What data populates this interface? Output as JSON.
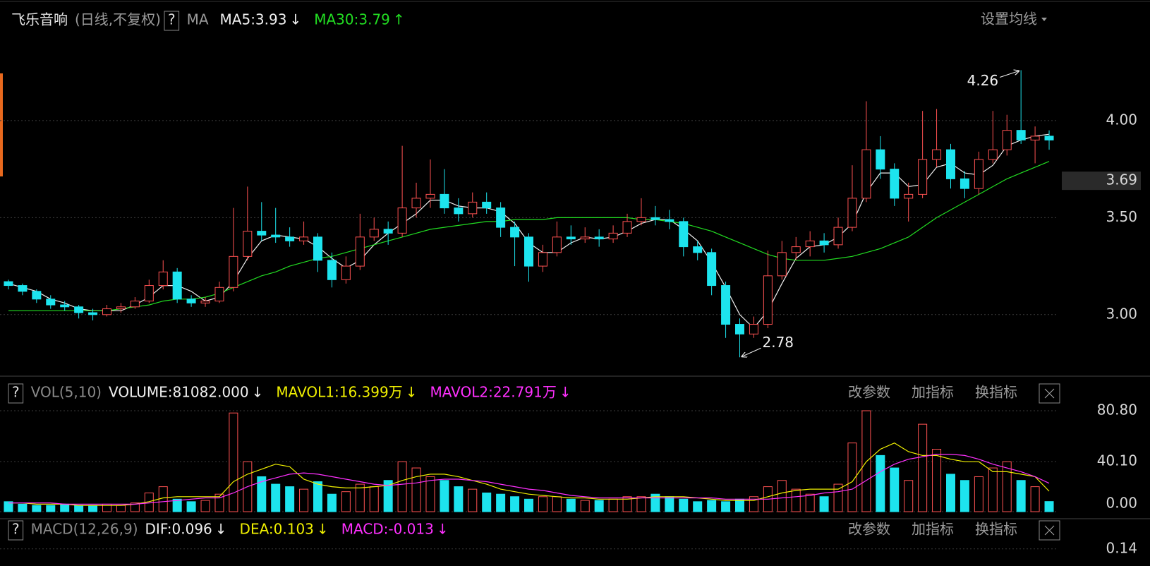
{
  "chart_data": [
    {
      "type": "candlestick",
      "title": "飞乐音响",
      "subtitle": "(日线,不复权)",
      "help": "?",
      "indicator": "MA",
      "settings": "设置均线",
      "up_color": "#ff5252",
      "down_color": "#1de4ee",
      "grid": true,
      "ylim": [
        2.69,
        4.44
      ],
      "yticks": [
        {
          "value": 3,
          "label": "3.00"
        },
        {
          "value": 3.5,
          "label": "3.50"
        },
        {
          "value": 4,
          "label": "4.00"
        }
      ],
      "current_price": 3.69,
      "extremes": [
        4.26,
        2.78
      ],
      "ohlc": [
        [
          3.17,
          3.18,
          3.13,
          3.15
        ],
        [
          3.15,
          3.16,
          3.1,
          3.12
        ],
        [
          3.12,
          3.13,
          3.06,
          3.08
        ],
        [
          3.08,
          3.1,
          3.03,
          3.05
        ],
        [
          3.05,
          3.07,
          3.02,
          3.04
        ],
        [
          3.04,
          3.05,
          2.98,
          3.01
        ],
        [
          3.01,
          3.03,
          2.97,
          3.0
        ],
        [
          3.0,
          3.05,
          2.99,
          3.03
        ],
        [
          3.03,
          3.06,
          3.01,
          3.04
        ],
        [
          3.04,
          3.09,
          3.03,
          3.07
        ],
        [
          3.07,
          3.18,
          3.06,
          3.15
        ],
        [
          3.15,
          3.28,
          3.13,
          3.22
        ],
        [
          3.22,
          3.24,
          3.06,
          3.08
        ],
        [
          3.08,
          3.1,
          3.04,
          3.06
        ],
        [
          3.06,
          3.09,
          3.04,
          3.07
        ],
        [
          3.07,
          3.17,
          3.06,
          3.14
        ],
        [
          3.14,
          3.55,
          3.12,
          3.3
        ],
        [
          3.3,
          3.66,
          3.28,
          3.43
        ],
        [
          3.43,
          3.58,
          3.38,
          3.41
        ],
        [
          3.41,
          3.55,
          3.37,
          3.4
        ],
        [
          3.4,
          3.45,
          3.35,
          3.38
        ],
        [
          3.38,
          3.48,
          3.36,
          3.4
        ],
        [
          3.4,
          3.42,
          3.22,
          3.28
        ],
        [
          3.28,
          3.32,
          3.14,
          3.18
        ],
        [
          3.18,
          3.3,
          3.16,
          3.25
        ],
        [
          3.25,
          3.52,
          3.23,
          3.4
        ],
        [
          3.4,
          3.5,
          3.38,
          3.44
        ],
        [
          3.44,
          3.48,
          3.36,
          3.42
        ],
        [
          3.42,
          3.87,
          3.4,
          3.55
        ],
        [
          3.55,
          3.68,
          3.5,
          3.6
        ],
        [
          3.6,
          3.8,
          3.55,
          3.62
        ],
        [
          3.62,
          3.75,
          3.52,
          3.55
        ],
        [
          3.55,
          3.6,
          3.48,
          3.52
        ],
        [
          3.52,
          3.63,
          3.5,
          3.58
        ],
        [
          3.58,
          3.63,
          3.52,
          3.55
        ],
        [
          3.55,
          3.58,
          3.4,
          3.45
        ],
        [
          3.45,
          3.48,
          3.25,
          3.4
        ],
        [
          3.4,
          3.42,
          3.17,
          3.25
        ],
        [
          3.25,
          3.36,
          3.22,
          3.32
        ],
        [
          3.32,
          3.48,
          3.3,
          3.4
        ],
        [
          3.4,
          3.46,
          3.36,
          3.39
        ],
        [
          3.39,
          3.45,
          3.37,
          3.4
        ],
        [
          3.4,
          3.44,
          3.35,
          3.39
        ],
        [
          3.39,
          3.46,
          3.37,
          3.42
        ],
        [
          3.42,
          3.52,
          3.4,
          3.48
        ],
        [
          3.48,
          3.6,
          3.46,
          3.5
        ],
        [
          3.5,
          3.56,
          3.46,
          3.49
        ],
        [
          3.49,
          3.54,
          3.44,
          3.48
        ],
        [
          3.48,
          3.5,
          3.3,
          3.35
        ],
        [
          3.35,
          3.38,
          3.28,
          3.32
        ],
        [
          3.32,
          3.34,
          3.1,
          3.15
        ],
        [
          3.15,
          3.17,
          2.88,
          2.95
        ],
        [
          2.95,
          2.98,
          2.78,
          2.9
        ],
        [
          2.9,
          2.99,
          2.88,
          2.95
        ],
        [
          2.95,
          3.33,
          2.93,
          3.2
        ],
        [
          3.2,
          3.38,
          3.18,
          3.32
        ],
        [
          3.32,
          3.4,
          3.28,
          3.35
        ],
        [
          3.35,
          3.43,
          3.3,
          3.38
        ],
        [
          3.38,
          3.42,
          3.32,
          3.36
        ],
        [
          3.36,
          3.5,
          3.34,
          3.45
        ],
        [
          3.45,
          3.77,
          3.43,
          3.6
        ],
        [
          3.6,
          4.1,
          3.58,
          3.85
        ],
        [
          3.85,
          3.92,
          3.7,
          3.75
        ],
        [
          3.75,
          3.78,
          3.56,
          3.6
        ],
        [
          3.6,
          3.68,
          3.48,
          3.62
        ],
        [
          3.62,
          4.05,
          3.6,
          3.8
        ],
        [
          3.8,
          4.06,
          3.76,
          3.85
        ],
        [
          3.85,
          3.88,
          3.65,
          3.7
        ],
        [
          3.7,
          3.74,
          3.6,
          3.65
        ],
        [
          3.65,
          3.84,
          3.62,
          3.8
        ],
        [
          3.8,
          4.05,
          3.78,
          3.85
        ],
        [
          3.85,
          4.03,
          3.82,
          3.95
        ],
        [
          3.95,
          4.26,
          3.88,
          3.9
        ],
        [
          3.9,
          3.97,
          3.78,
          3.92
        ],
        [
          3.92,
          3.95,
          3.85,
          3.9
        ]
      ],
      "series": [
        {
          "name": "MA5:3.93",
          "trend": "↓",
          "color": "#f0f0f0",
          "values": [
            3.16,
            3.14,
            3.12,
            3.08,
            3.06,
            3.03,
            3.02,
            3.02,
            3.02,
            3.05,
            3.09,
            3.15,
            3.15,
            3.12,
            3.07,
            3.09,
            3.17,
            3.29,
            3.38,
            3.41,
            3.4,
            3.39,
            3.35,
            3.29,
            3.24,
            3.28,
            3.36,
            3.42,
            3.47,
            3.52,
            3.59,
            3.59,
            3.56,
            3.55,
            3.55,
            3.53,
            3.47,
            3.37,
            3.32,
            3.32,
            3.37,
            3.4,
            3.39,
            3.4,
            3.43,
            3.47,
            3.49,
            3.49,
            3.44,
            3.38,
            3.27,
            3.14,
            3.0,
            2.93,
            3.02,
            3.16,
            3.29,
            3.35,
            3.36,
            3.4,
            3.47,
            3.63,
            3.73,
            3.73,
            3.66,
            3.67,
            3.76,
            3.78,
            3.73,
            3.72,
            3.77,
            3.87,
            3.9,
            3.92,
            3.93
          ]
        },
        {
          "name": "MA30:3.79",
          "trend": "↑",
          "color": "#22dd22",
          "values": [
            3.02,
            3.02,
            3.02,
            3.02,
            3.02,
            3.02,
            3.02,
            3.02,
            3.03,
            3.04,
            3.05,
            3.07,
            3.08,
            3.08,
            3.09,
            3.11,
            3.14,
            3.17,
            3.2,
            3.22,
            3.25,
            3.27,
            3.29,
            3.3,
            3.32,
            3.34,
            3.36,
            3.38,
            3.4,
            3.42,
            3.44,
            3.45,
            3.46,
            3.47,
            3.48,
            3.48,
            3.49,
            3.49,
            3.49,
            3.5,
            3.5,
            3.5,
            3.5,
            3.5,
            3.5,
            3.49,
            3.49,
            3.48,
            3.47,
            3.45,
            3.43,
            3.4,
            3.37,
            3.34,
            3.31,
            3.29,
            3.28,
            3.28,
            3.28,
            3.29,
            3.3,
            3.32,
            3.34,
            3.37,
            3.4,
            3.45,
            3.5,
            3.54,
            3.58,
            3.62,
            3.66,
            3.7,
            3.73,
            3.76,
            3.79
          ]
        }
      ]
    },
    {
      "type": "bar",
      "title": "VOL(5,10)",
      "help": "?",
      "volume_label": "VOLUME:81082.000",
      "volume_trend": "↓",
      "toolbar": [
        "改参数",
        "加指标",
        "换指标"
      ],
      "grid": true,
      "ylim": [
        0,
        80.8
      ],
      "yticks": [
        {
          "value": 0,
          "label": "0.00"
        },
        {
          "value": 40.1,
          "label": "40.10"
        },
        {
          "value": 80.8,
          "label": "80.80"
        }
      ],
      "values": [
        8,
        6,
        5,
        5,
        6,
        5,
        5,
        6,
        5,
        7,
        15,
        20,
        10,
        8,
        9,
        14,
        79,
        40,
        28,
        22,
        20,
        18,
        24,
        14,
        16,
        22,
        20,
        25,
        40,
        35,
        28,
        25,
        20,
        18,
        15,
        14,
        12,
        10,
        12,
        12,
        10,
        9,
        9,
        10,
        12,
        12,
        14,
        12,
        10,
        8,
        9,
        8,
        10,
        12,
        20,
        25,
        18,
        14,
        12,
        22,
        55,
        80.8,
        45,
        35,
        25,
        70,
        50,
        30,
        25,
        28,
        35,
        40,
        25,
        20,
        8.1
      ],
      "series": [
        {
          "name": "MAVOL1:16.399万",
          "trend": "↓",
          "color": "#f0f000",
          "values": [
            7,
            7,
            6,
            6,
            6,
            5,
            5,
            5,
            5,
            6,
            8,
            11,
            12,
            12,
            12,
            12,
            24,
            30,
            34,
            38,
            36,
            26,
            22,
            20,
            19,
            19,
            20,
            21,
            25,
            28,
            30,
            30,
            28,
            25,
            22,
            18,
            16,
            14,
            13,
            12,
            11,
            11,
            10,
            10,
            10,
            11,
            12,
            12,
            12,
            11,
            10,
            9,
            9,
            9,
            12,
            15,
            17,
            18,
            18,
            18,
            24,
            40,
            50,
            55,
            48,
            45,
            45,
            42,
            40,
            40,
            32,
            32,
            30,
            28,
            16.399
          ]
        },
        {
          "name": "MAVOL2:22.791万",
          "trend": "↓",
          "color": "#ff30ff",
          "values": [
            7,
            7,
            7,
            7,
            6,
            6,
            6,
            6,
            6,
            6,
            7,
            8,
            9,
            10,
            11,
            11,
            15,
            20,
            24,
            27,
            30,
            31,
            30,
            28,
            26,
            24,
            22,
            21,
            22,
            23,
            25,
            26,
            26,
            25,
            24,
            22,
            20,
            18,
            17,
            15,
            13,
            12,
            11,
            11,
            11,
            11,
            11,
            11,
            11,
            11,
            11,
            10,
            10,
            10,
            10,
            11,
            12,
            13,
            15,
            16,
            18,
            25,
            32,
            38,
            42,
            44,
            46,
            46,
            45,
            42,
            38,
            35,
            32,
            28,
            22.791
          ]
        }
      ]
    },
    {
      "type": "macd",
      "title": "MACD(12,26,9)",
      "help": "?",
      "toolbar": [
        "改参数",
        "加指标",
        "换指标"
      ],
      "grid": true,
      "ylim": [
        0.1,
        0.2
      ],
      "yticks": [
        0.14
      ],
      "legend": [
        {
          "label": "DIF:0.096",
          "trend": "↓",
          "color": "#f0f0f0"
        },
        {
          "label": "DEA:0.103",
          "trend": "↓",
          "color": "#f0f000"
        },
        {
          "label": "MACD:-0.013",
          "trend": "↓",
          "color": "#ff30ff"
        }
      ]
    }
  ]
}
